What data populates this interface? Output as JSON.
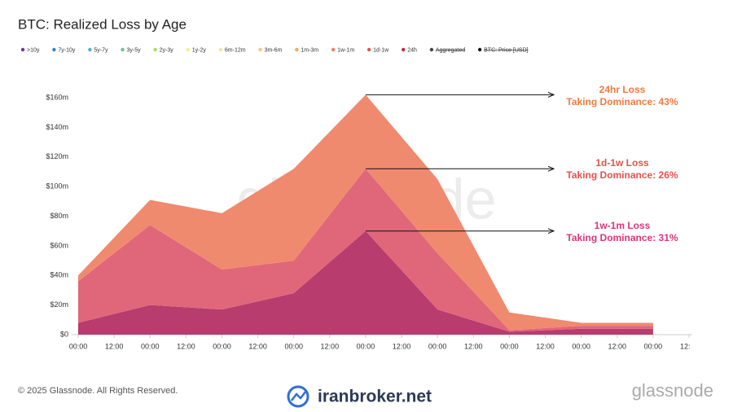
{
  "chart_data": {
    "type": "stacked_area",
    "title": "BTC: Realized Loss by Age",
    "legend": [
      {
        "name": ">10y",
        "color": "#5b3f9e"
      },
      {
        "name": "7y-10y",
        "color": "#3a7fb5"
      },
      {
        "name": "5y-7y",
        "color": "#4fb0c6"
      },
      {
        "name": "3y-5y",
        "color": "#6cc08b"
      },
      {
        "name": "2y-3y",
        "color": "#a6d96a"
      },
      {
        "name": "1y-2y",
        "color": "#f2ee8a"
      },
      {
        "name": "6m-12m",
        "color": "#f6e49c"
      },
      {
        "name": "3m-6m",
        "color": "#f7c27a"
      },
      {
        "name": "1m-3m",
        "color": "#f4a460"
      },
      {
        "name": "1w-1m",
        "color": "#ef7d5a"
      },
      {
        "name": "1d-1w",
        "color": "#e8504f"
      },
      {
        "name": "24h",
        "color": "#c0283d"
      },
      {
        "name": "Aggregated",
        "color": "#444444"
      },
      {
        "name": "BTC: Price [USD]",
        "color": "#111111"
      }
    ],
    "x": [
      0,
      24,
      48,
      72,
      96,
      120,
      144,
      168,
      192
    ],
    "series": [
      {
        "color": "#b83c6e",
        "values": [
          8,
          20,
          17,
          28,
          70,
          17,
          2,
          4,
          4
        ]
      },
      {
        "color": "#e0677a",
        "values": [
          28,
          54,
          27,
          22,
          42,
          38,
          1,
          2,
          2
        ]
      },
      {
        "color": "#f08a6e",
        "values": [
          4,
          17,
          38,
          62,
          50,
          50,
          12,
          2,
          2
        ]
      }
    ],
    "xlim": [
      0,
      204
    ],
    "xticks": [
      {
        "value": 0,
        "label": "00:00"
      },
      {
        "value": 12,
        "label": "12:00"
      },
      {
        "value": 24,
        "label": "00:00"
      },
      {
        "value": 36,
        "label": "12:00"
      },
      {
        "value": 48,
        "label": "00:00"
      },
      {
        "value": 60,
        "label": "12:00"
      },
      {
        "value": 72,
        "label": "00:00"
      },
      {
        "value": 84,
        "label": "12:00"
      },
      {
        "value": 96,
        "label": "00:00"
      },
      {
        "value": 108,
        "label": "12:00"
      },
      {
        "value": 120,
        "label": "00:00"
      },
      {
        "value": 132,
        "label": "12:00"
      },
      {
        "value": 144,
        "label": "00:00"
      },
      {
        "value": 156,
        "label": "12:00"
      },
      {
        "value": 168,
        "label": "00:00"
      },
      {
        "value": 180,
        "label": "12:00"
      },
      {
        "value": 192,
        "label": "00:00"
      },
      {
        "value": 204,
        "label": "12:"
      }
    ],
    "ylim": [
      0,
      160
    ],
    "yticks": [
      {
        "value": 0,
        "label": "$0"
      },
      {
        "value": 20,
        "label": "$20m"
      },
      {
        "value": 40,
        "label": "$40m"
      },
      {
        "value": 60,
        "label": "$60m"
      },
      {
        "value": 80,
        "label": "$80m"
      },
      {
        "value": 100,
        "label": "$100m"
      },
      {
        "value": 120,
        "label": "$120m"
      },
      {
        "value": 140,
        "label": "$140m"
      },
      {
        "value": 160,
        "label": "$160m"
      }
    ],
    "annotations": [
      {
        "line1": "24hr Loss",
        "line2": "Taking Dominance: 43%",
        "color": "#f07a3c"
      },
      {
        "line1": "1d-1w Loss",
        "line2": "Taking Dominance: 26%",
        "color": "#e8504f"
      },
      {
        "line1": "1w-1m Loss",
        "line2": "Taking Dominance: 31%",
        "color": "#d9367a"
      }
    ]
  },
  "watermark": "glassnode",
  "footer": {
    "copyright": "© 2025 Glassnode. All Rights Reserved.",
    "site": "iranbroker.net",
    "brand": "glassnode"
  }
}
